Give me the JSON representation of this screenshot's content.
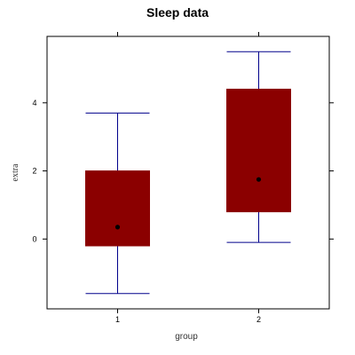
{
  "chart_data": {
    "type": "box",
    "title": "Sleep data",
    "xlabel": "group",
    "ylabel": "extra",
    "categories": [
      "1",
      "2"
    ],
    "boxes": [
      {
        "category": "1",
        "whisker_low": -1.6,
        "q1": -0.2,
        "median": 0.35,
        "q3": 2.0,
        "whisker_high": 3.7
      },
      {
        "category": "2",
        "whisker_low": -0.1,
        "q1": 0.8,
        "median": 1.75,
        "q3": 4.4,
        "whisker_high": 5.5
      }
    ],
    "ylim": [
      -2.05,
      5.95
    ],
    "yticks": [
      0,
      2,
      4
    ],
    "ytick_labels": [
      "0",
      "2",
      "4"
    ],
    "grid": false,
    "colors": {
      "box_fill": "#8B0000",
      "whisker": "#00008B",
      "median_dot": "#000000",
      "frame": "#000000"
    }
  }
}
